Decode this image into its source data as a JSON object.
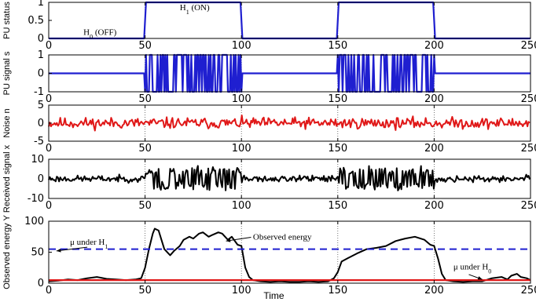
{
  "chart_data": [
    {
      "type": "line",
      "ylabel": "PU status",
      "xlim": [
        0,
        250
      ],
      "ylim": [
        0,
        1
      ],
      "yticks": [
        0,
        0.5,
        1
      ],
      "xticks": [
        0,
        50,
        100,
        150,
        200,
        250
      ],
      "series": [
        {
          "color": "#1f1fd0",
          "x": [
            0,
            49.5,
            50.5,
            99.5,
            100.5,
            149.5,
            150.5,
            199.5,
            200.5,
            250
          ],
          "y": [
            0,
            0,
            1,
            1,
            0,
            0,
            1,
            1,
            0,
            0
          ]
        }
      ],
      "annotations": [
        {
          "text": "H",
          "sub": "0",
          "suffix": " (OFF)",
          "x": 18,
          "y": 0.1
        },
        {
          "text": "H",
          "sub": "1",
          "suffix": " (ON)",
          "x": 68,
          "y": 0.78
        }
      ]
    },
    {
      "type": "line",
      "ylabel": "PU signal s",
      "xlim": [
        0,
        250
      ],
      "ylim": [
        -1,
        1
      ],
      "yticks": [
        -1,
        0,
        1
      ],
      "xticks": [
        0,
        50,
        100,
        150,
        200,
        250
      ],
      "series": [
        {
          "color": "#1f1fd0",
          "kind": "bpsk",
          "on_segments": [
            [
              50,
              100
            ],
            [
              150,
              200
            ]
          ]
        }
      ]
    },
    {
      "type": "line",
      "ylabel": "Noise n",
      "xlim": [
        0,
        250
      ],
      "ylim": [
        -5,
        5
      ],
      "yticks": [
        -5,
        0,
        5
      ],
      "xticks": [
        0,
        50,
        100,
        150,
        200,
        250
      ],
      "series": [
        {
          "color": "#e01818",
          "kind": "noise",
          "amplitude": 1.0
        }
      ]
    },
    {
      "type": "line",
      "ylabel": "Received signal x",
      "xlim": [
        0,
        250
      ],
      "ylim": [
        -10,
        10
      ],
      "yticks": [
        -10,
        0,
        10
      ],
      "xticks": [
        0,
        50,
        100,
        150,
        200,
        250
      ],
      "series": [
        {
          "color": "#000000",
          "kind": "received",
          "on_segments": [
            [
              50,
              100
            ],
            [
              150,
              200
            ]
          ]
        }
      ]
    },
    {
      "type": "line",
      "ylabel": "Observed energy Y",
      "xlabel": "Time",
      "xlim": [
        0,
        250
      ],
      "ylim": [
        0,
        100
      ],
      "yticks": [
        0,
        50,
        100
      ],
      "xticks": [
        0,
        50,
        100,
        150,
        200,
        250
      ],
      "series": [
        {
          "color": "#000000",
          "x": [
            0,
            5,
            10,
            15,
            20,
            25,
            30,
            35,
            40,
            45,
            48,
            50,
            52,
            54,
            55,
            57,
            60,
            63,
            65,
            68,
            70,
            73,
            75,
            78,
            80,
            83,
            85,
            88,
            90,
            93,
            95,
            98,
            100,
            102,
            104,
            106,
            110,
            115,
            120,
            125,
            130,
            135,
            140,
            145,
            148,
            150,
            152,
            155,
            160,
            165,
            170,
            175,
            180,
            185,
            190,
            195,
            198,
            200,
            202,
            204,
            206,
            210,
            215,
            220,
            225,
            230,
            235,
            238,
            240,
            243,
            245,
            248,
            250
          ],
          "y": [
            3,
            4,
            6,
            5,
            8,
            10,
            7,
            6,
            5,
            6,
            8,
            25,
            55,
            80,
            88,
            85,
            55,
            45,
            52,
            60,
            70,
            75,
            72,
            80,
            82,
            75,
            78,
            82,
            80,
            70,
            75,
            62,
            60,
            25,
            10,
            5,
            3,
            2,
            3,
            2,
            2,
            3,
            2,
            3,
            8,
            18,
            35,
            40,
            48,
            55,
            57,
            60,
            68,
            72,
            75,
            70,
            62,
            60,
            40,
            15,
            5,
            3,
            2,
            3,
            3,
            8,
            10,
            6,
            12,
            15,
            10,
            8,
            5
          ]
        },
        {
          "color": "#1f1fd0",
          "dashed": true,
          "x": [
            0,
            250
          ],
          "y": [
            55,
            55
          ]
        },
        {
          "color": "#e01818",
          "x": [
            0,
            250
          ],
          "y": [
            5,
            5
          ]
        }
      ],
      "annotations": [
        {
          "text": "μ under H",
          "sub": "1",
          "x": 11,
          "y": 62
        },
        {
          "text": "Observed energy",
          "x": 106,
          "y": 70
        },
        {
          "text": "μ under H",
          "sub": "0",
          "x": 210,
          "y": 22
        }
      ]
    }
  ]
}
